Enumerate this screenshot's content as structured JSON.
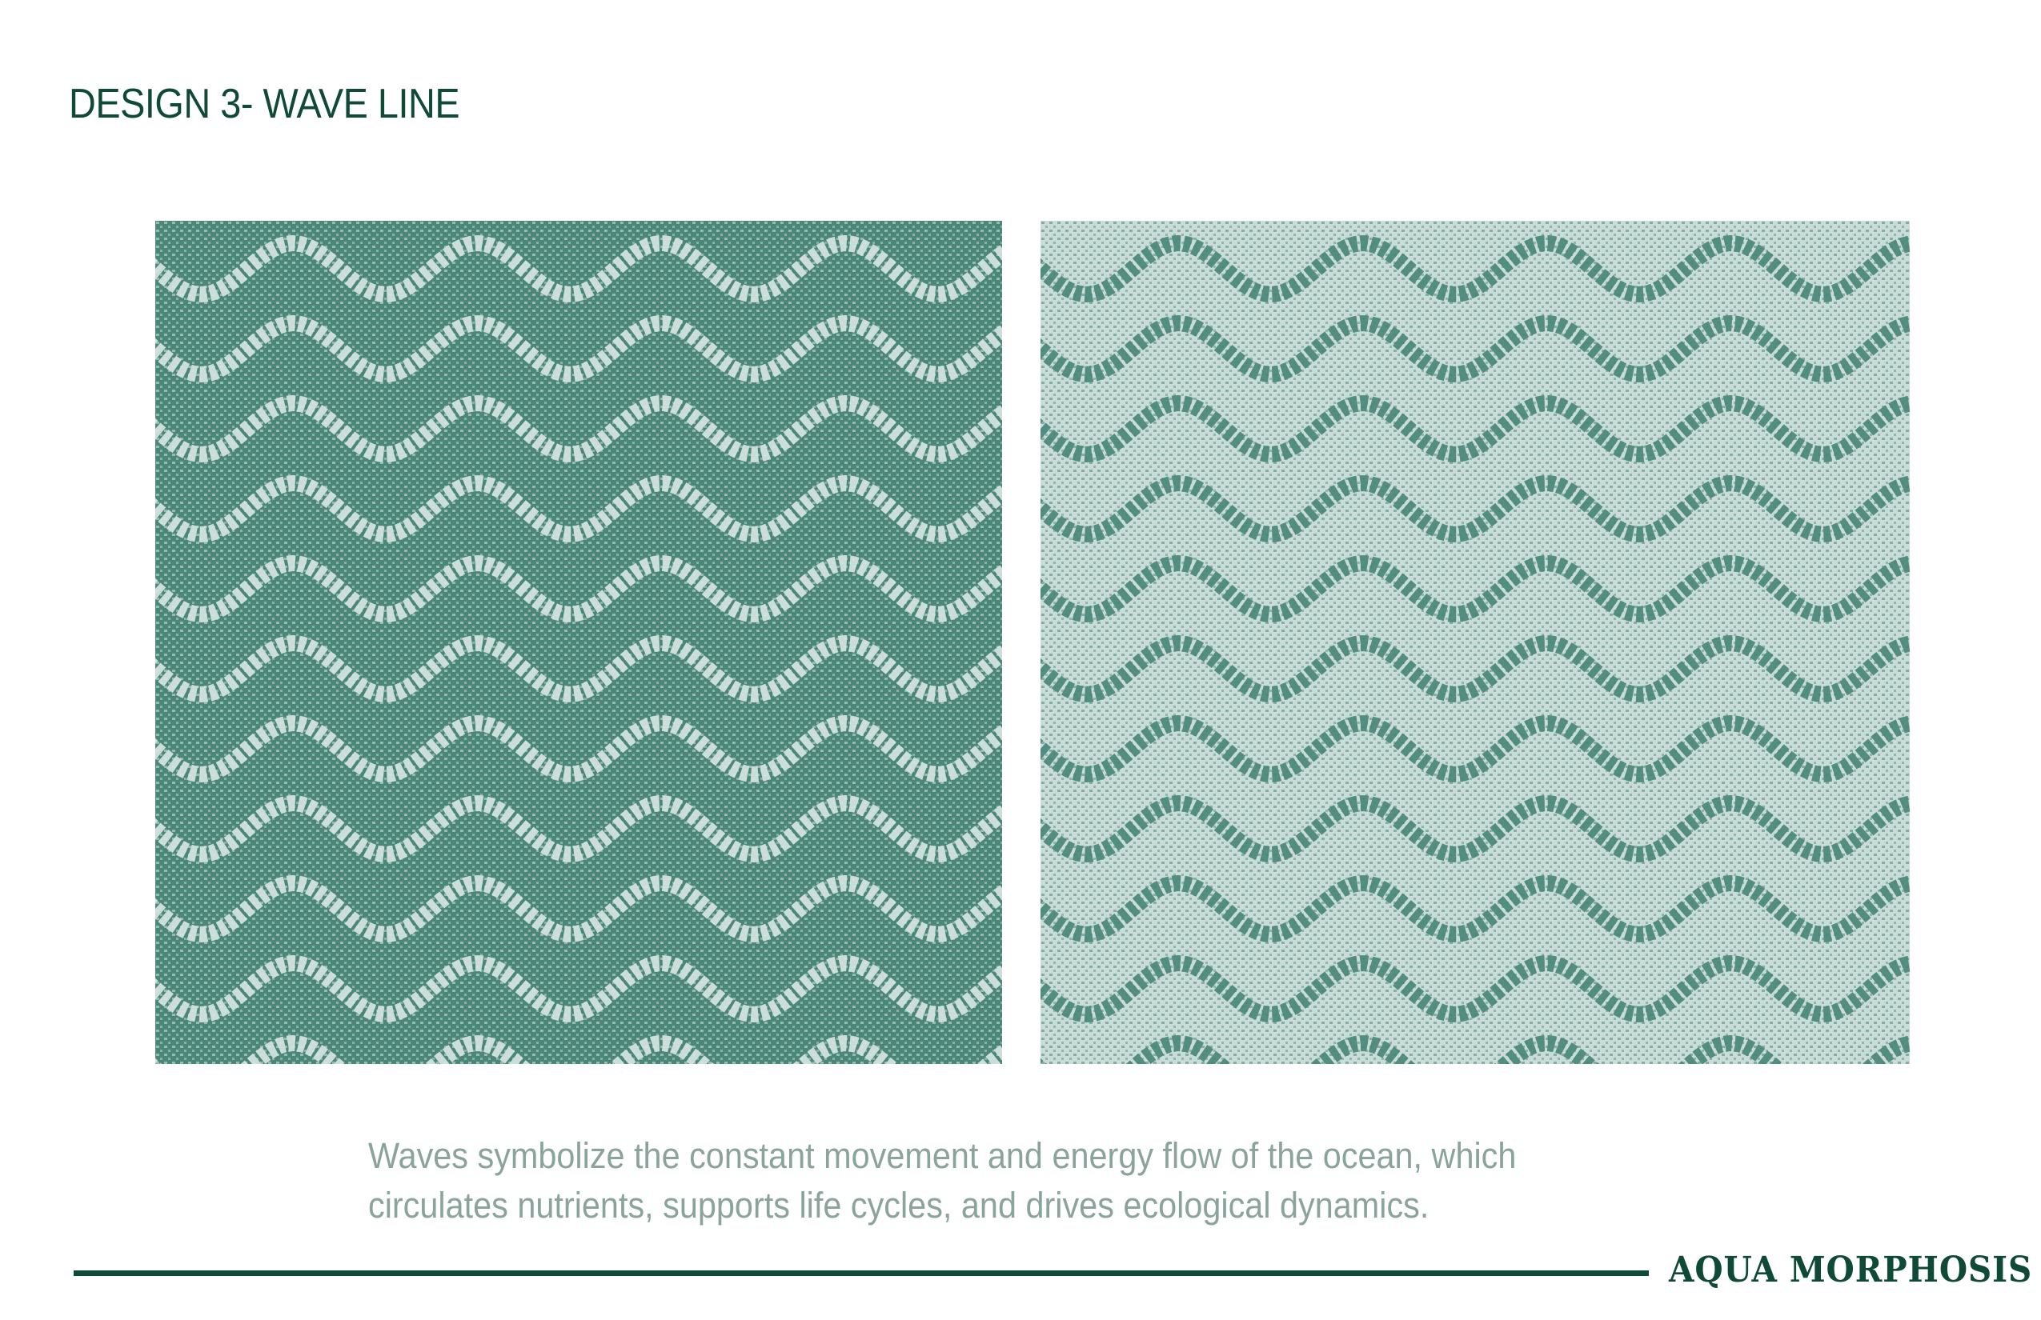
{
  "page": {
    "title": "DESIGN 3- WAVE LINE",
    "description_lines": [
      "Waves symbolize the constant movement and energy flow of the ocean, which",
      "circulates nutrients, supports life cycles, and drives ecological dynamics."
    ],
    "brand": "AQUA MORPHOSIS"
  },
  "swatches": [
    {
      "name": "dark-ground",
      "ground_color": "#4a8778",
      "wave_color": "#d6e4e1"
    },
    {
      "name": "light-ground",
      "ground_color": "#c9dcd8",
      "wave_color": "#4a8778"
    }
  ],
  "colors": {
    "title": "#0e4a36",
    "description": "#8aa49b",
    "rule": "#0e4a36",
    "brand": "#0e4a36"
  }
}
